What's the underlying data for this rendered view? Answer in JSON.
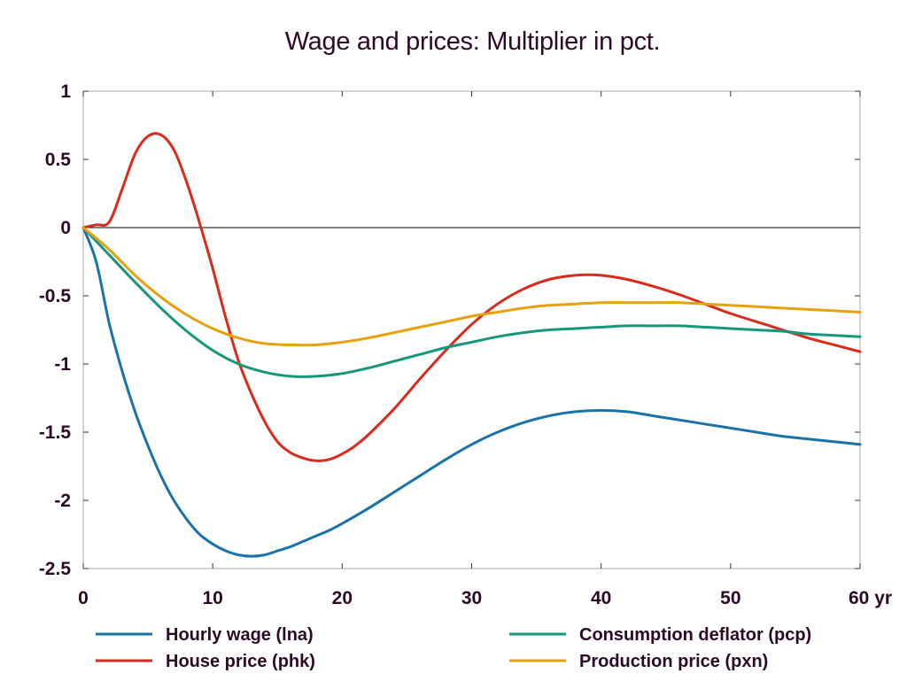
{
  "chart_data": {
    "type": "line",
    "title": "Wage and prices: Multiplier in pct.",
    "xlabel": "",
    "ylabel": "",
    "x_unit": "yr",
    "xlim": [
      0,
      60
    ],
    "ylim": [
      -2.5,
      1
    ],
    "x_ticks": [
      0,
      10,
      20,
      30,
      40,
      50,
      60
    ],
    "x_tick_labels": [
      "0",
      "10",
      "20",
      "30",
      "40",
      "50",
      "60 yr"
    ],
    "y_ticks": [
      1,
      0.5,
      0,
      -0.5,
      -1,
      -1.5,
      -2,
      -2.5
    ],
    "y_tick_labels": [
      "1",
      "0.5",
      "0",
      "-0.5",
      "-1",
      "-1.5",
      "-2",
      "-2.5"
    ],
    "zero_line": true,
    "grid": false,
    "legend_position": "bottom",
    "series": [
      {
        "name": "Hourly wage (lna)",
        "color": "#1a73a8",
        "x": [
          0,
          1,
          2,
          3,
          4,
          5,
          6,
          7,
          8,
          9,
          10,
          11,
          12,
          13,
          14,
          15,
          16,
          17,
          18,
          19,
          20,
          22,
          24,
          26,
          28,
          30,
          32,
          34,
          36,
          38,
          40,
          42,
          44,
          46,
          48,
          50,
          52,
          54,
          56,
          58,
          60
        ],
        "y": [
          0,
          -0.25,
          -0.7,
          -1.05,
          -1.35,
          -1.6,
          -1.82,
          -2.0,
          -2.14,
          -2.25,
          -2.32,
          -2.37,
          -2.4,
          -2.41,
          -2.4,
          -2.37,
          -2.34,
          -2.3,
          -2.26,
          -2.22,
          -2.17,
          -2.06,
          -1.94,
          -1.82,
          -1.7,
          -1.59,
          -1.5,
          -1.43,
          -1.38,
          -1.35,
          -1.34,
          -1.35,
          -1.38,
          -1.41,
          -1.44,
          -1.47,
          -1.5,
          -1.53,
          -1.55,
          -1.57,
          -1.59
        ]
      },
      {
        "name": "House price (phk)",
        "color": "#d92a1c",
        "x": [
          0,
          1,
          2,
          3,
          4,
          5,
          6,
          7,
          8,
          9,
          10,
          11,
          12,
          13,
          14,
          15,
          16,
          17,
          18,
          19,
          20,
          21,
          22,
          24,
          26,
          28,
          30,
          32,
          34,
          36,
          38,
          40,
          42,
          44,
          46,
          48,
          50,
          52,
          54,
          56,
          58,
          60
        ],
        "y": [
          0,
          0.02,
          0.04,
          0.28,
          0.54,
          0.67,
          0.68,
          0.57,
          0.33,
          0.03,
          -0.3,
          -0.66,
          -0.98,
          -1.22,
          -1.42,
          -1.57,
          -1.65,
          -1.69,
          -1.71,
          -1.7,
          -1.66,
          -1.6,
          -1.52,
          -1.33,
          -1.11,
          -0.9,
          -0.71,
          -0.56,
          -0.45,
          -0.38,
          -0.35,
          -0.35,
          -0.38,
          -0.43,
          -0.49,
          -0.56,
          -0.63,
          -0.69,
          -0.75,
          -0.81,
          -0.86,
          -0.91
        ]
      },
      {
        "name": "Consumption deflator (pcp)",
        "color": "#16977a",
        "x": [
          0,
          2,
          4,
          6,
          8,
          10,
          12,
          14,
          16,
          18,
          20,
          22,
          24,
          26,
          28,
          30,
          32,
          34,
          36,
          38,
          40,
          42,
          44,
          46,
          48,
          50,
          52,
          54,
          56,
          58,
          60
        ],
        "y": [
          0,
          -0.2,
          -0.4,
          -0.59,
          -0.76,
          -0.9,
          -1.0,
          -1.06,
          -1.09,
          -1.09,
          -1.07,
          -1.03,
          -0.98,
          -0.93,
          -0.88,
          -0.84,
          -0.8,
          -0.77,
          -0.75,
          -0.74,
          -0.73,
          -0.72,
          -0.72,
          -0.72,
          -0.73,
          -0.74,
          -0.75,
          -0.76,
          -0.78,
          -0.79,
          -0.8
        ]
      },
      {
        "name": "Production price (pxn)",
        "color": "#e6a10f",
        "x": [
          0,
          2,
          4,
          6,
          8,
          10,
          12,
          14,
          16,
          18,
          20,
          22,
          24,
          26,
          28,
          30,
          32,
          34,
          36,
          38,
          40,
          42,
          44,
          46,
          48,
          50,
          52,
          54,
          56,
          58,
          60
        ],
        "y": [
          0,
          -0.16,
          -0.35,
          -0.51,
          -0.64,
          -0.74,
          -0.81,
          -0.85,
          -0.86,
          -0.86,
          -0.84,
          -0.81,
          -0.77,
          -0.73,
          -0.69,
          -0.65,
          -0.62,
          -0.59,
          -0.57,
          -0.56,
          -0.55,
          -0.55,
          -0.55,
          -0.55,
          -0.56,
          -0.57,
          -0.58,
          -0.59,
          -0.6,
          -0.61,
          -0.62
        ]
      }
    ]
  }
}
